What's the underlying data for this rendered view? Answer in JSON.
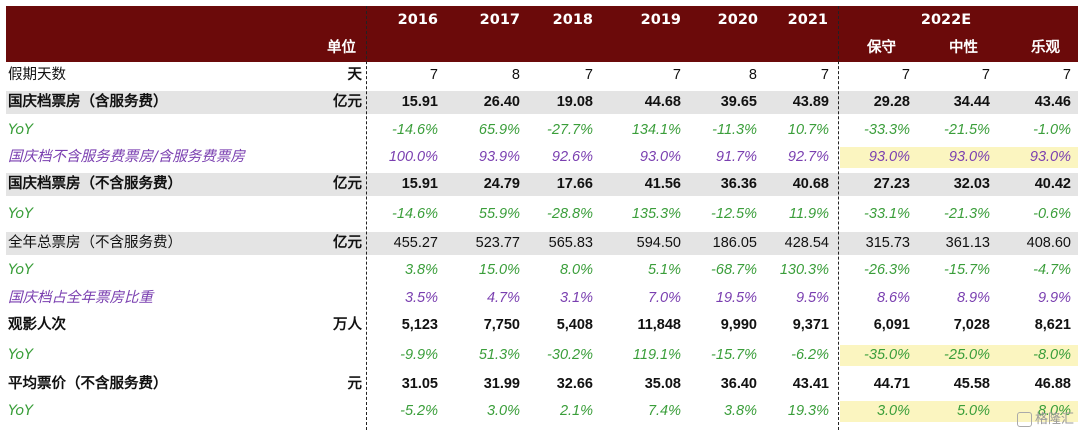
{
  "header": {
    "unit_label": "单位",
    "years": [
      "2016",
      "2017",
      "2018",
      "2019",
      "2020",
      "2021"
    ],
    "forecast_year": "2022E",
    "scenarios": [
      "保守",
      "中性",
      "乐观"
    ]
  },
  "rows": [
    {
      "label": "假期天数",
      "unit": "天",
      "values": [
        "7",
        "8",
        "7",
        "7",
        "8",
        "7",
        "7",
        "7",
        "7"
      ],
      "style": "plain",
      "shade": false
    },
    {
      "label": "国庆档票房（含服务费）",
      "unit": "亿元",
      "values": [
        "15.91",
        "26.40",
        "19.08",
        "44.68",
        "39.65",
        "43.89",
        "29.28",
        "34.44",
        "43.46"
      ],
      "style": "bold",
      "shade": true
    },
    {
      "label": "YoY",
      "unit": "",
      "values": [
        "-14.6%",
        "65.9%",
        "-27.7%",
        "134.1%",
        "-11.3%",
        "10.7%",
        "-33.3%",
        "-21.5%",
        "-1.0%"
      ],
      "style": "green",
      "shade": false
    },
    {
      "label": "国庆档不含服务费票房/含服务费票房",
      "unit": "",
      "values": [
        "100.0%",
        "93.9%",
        "92.6%",
        "93.0%",
        "91.7%",
        "92.7%",
        "93.0%",
        "93.0%",
        "93.0%"
      ],
      "style": "purple",
      "shade": false,
      "highlight": true
    },
    {
      "label": "国庆档票房（不含服务费）",
      "unit": "亿元",
      "values": [
        "15.91",
        "24.79",
        "17.66",
        "41.56",
        "36.36",
        "40.68",
        "27.23",
        "32.03",
        "40.42"
      ],
      "style": "bold",
      "shade": true
    },
    {
      "label": "YoY",
      "unit": "",
      "values": [
        "-14.6%",
        "55.9%",
        "-28.8%",
        "135.3%",
        "-12.5%",
        "11.9%",
        "-33.1%",
        "-21.3%",
        "-0.6%"
      ],
      "style": "green",
      "shade": false
    },
    {
      "label": "全年总票房（不含服务费）",
      "unit": "亿元",
      "values": [
        "455.27",
        "523.77",
        "565.83",
        "594.50",
        "186.05",
        "428.54",
        "315.73",
        "361.13",
        "408.60"
      ],
      "style": "plain",
      "shade": true
    },
    {
      "label": "YoY",
      "unit": "",
      "values": [
        "3.8%",
        "15.0%",
        "8.0%",
        "5.1%",
        "-68.7%",
        "130.3%",
        "-26.3%",
        "-15.7%",
        "-4.7%"
      ],
      "style": "green",
      "shade": false
    },
    {
      "label": "国庆档占全年票房比重",
      "unit": "",
      "values": [
        "3.5%",
        "4.7%",
        "3.1%",
        "7.0%",
        "19.5%",
        "9.5%",
        "8.6%",
        "8.9%",
        "9.9%"
      ],
      "style": "purple",
      "shade": false
    },
    {
      "label": "观影人次",
      "unit": "万人",
      "values": [
        "5,123",
        "7,750",
        "5,408",
        "11,848",
        "9,990",
        "9,371",
        "6,091",
        "7,028",
        "8,621"
      ],
      "style": "bold",
      "shade": false
    },
    {
      "label": "YoY",
      "unit": "",
      "values": [
        "-9.9%",
        "51.3%",
        "-30.2%",
        "119.1%",
        "-15.7%",
        "-6.2%",
        "-35.0%",
        "-25.0%",
        "-8.0%"
      ],
      "style": "green",
      "shade": false,
      "highlight": true
    },
    {
      "label": "平均票价（不含服务费）",
      "unit": "元",
      "values": [
        "31.05",
        "31.99",
        "32.66",
        "35.08",
        "36.40",
        "43.41",
        "44.71",
        "45.58",
        "46.88"
      ],
      "style": "bold",
      "shade": false
    },
    {
      "label": "YoY",
      "unit": "",
      "values": [
        "-5.2%",
        "3.0%",
        "2.1%",
        "7.4%",
        "3.8%",
        "19.3%",
        "3.0%",
        "5.0%",
        "8.0%"
      ],
      "style": "green",
      "shade": false,
      "highlight": true
    }
  ],
  "watermark": "格隆汇"
}
